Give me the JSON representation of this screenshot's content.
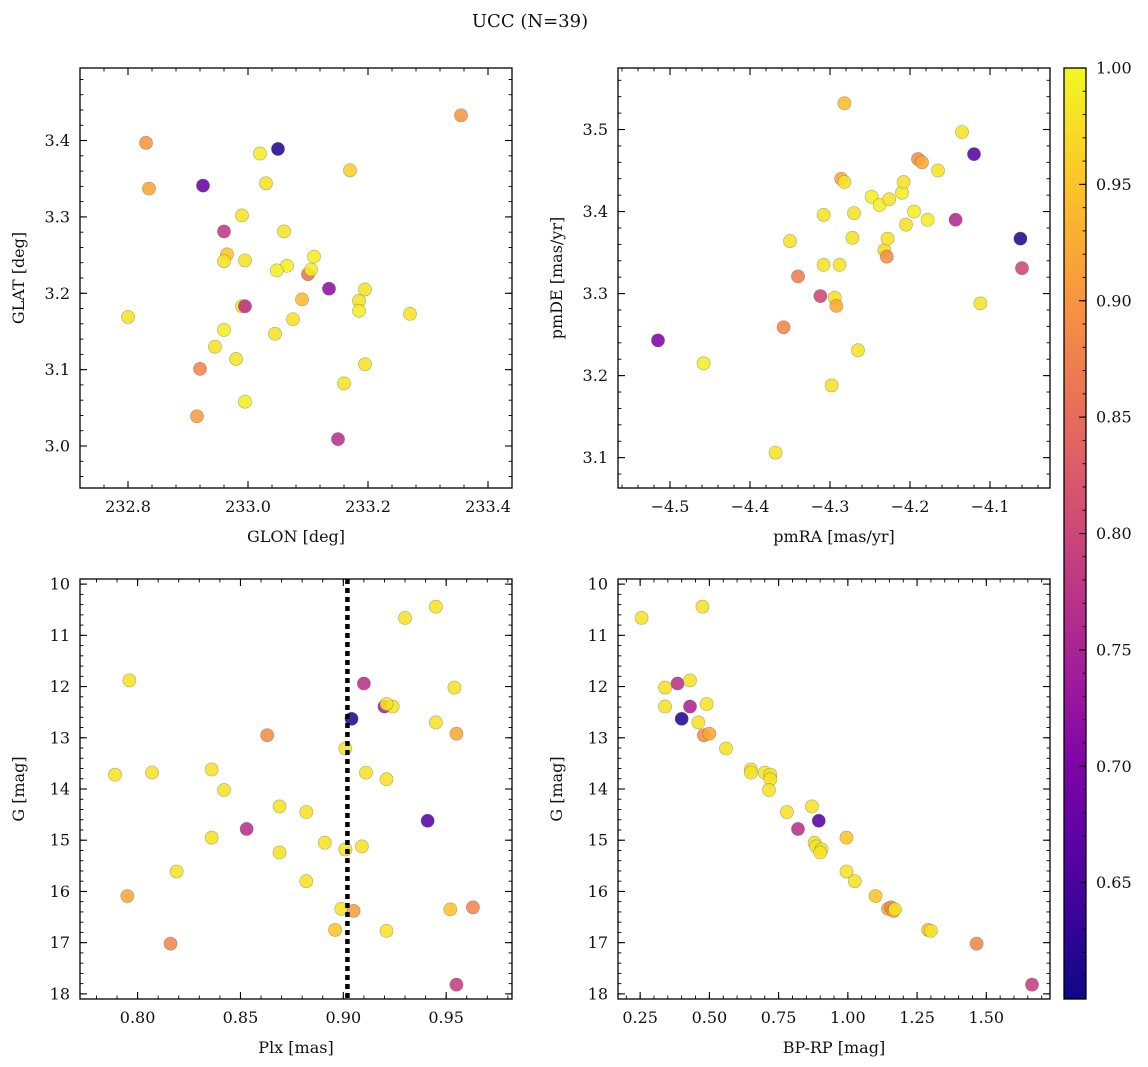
{
  "figure": {
    "title": "UCC (N=39)"
  },
  "colorbar": {
    "colormap": "plasma",
    "range": [
      0.6,
      1.0
    ],
    "ticks": [
      0.65,
      0.7,
      0.75,
      0.8,
      0.85,
      0.9,
      0.95,
      1.0
    ],
    "tick_labels": [
      "0.65",
      "0.70",
      "0.75",
      "0.80",
      "0.85",
      "0.90",
      "0.95",
      "1.00"
    ]
  },
  "chart_data": [
    {
      "type": "scatter",
      "id": "glon-glat",
      "xlabel": "GLON [deg]",
      "ylabel": "GLAT [deg]",
      "xlim": [
        232.72,
        233.44
      ],
      "ylim": [
        2.945,
        3.495
      ],
      "xticks": [
        232.8,
        233.0,
        233.2,
        233.4
      ],
      "xtick_labels": [
        "232.8",
        "233.0",
        "233.2",
        "233.4"
      ],
      "yticks": [
        3.0,
        3.1,
        3.2,
        3.3,
        3.4
      ],
      "ytick_labels": [
        "3.0",
        "3.1",
        "3.2",
        "3.3",
        "3.4"
      ],
      "x": [
        232.83,
        232.835,
        232.925,
        232.96,
        232.965,
        232.96,
        232.99,
        232.99,
        232.995,
        232.995,
        232.96,
        232.945,
        232.98,
        232.92,
        232.915,
        232.995,
        233.02,
        233.03,
        233.05,
        233.06,
        233.065,
        233.048,
        233.045,
        233.075,
        233.09,
        233.1,
        233.105,
        233.11,
        233.135,
        233.15,
        233.16,
        233.17,
        233.185,
        233.185,
        233.195,
        233.195,
        233.27,
        233.355,
        232.8
      ],
      "y": [
        3.397,
        3.337,
        3.341,
        3.281,
        3.251,
        3.242,
        3.302,
        3.183,
        3.183,
        3.243,
        3.152,
        3.13,
        3.114,
        3.101,
        3.039,
        3.058,
        3.383,
        3.344,
        3.389,
        3.281,
        3.236,
        3.23,
        3.147,
        3.166,
        3.192,
        3.225,
        3.231,
        3.248,
        3.206,
        3.009,
        3.082,
        3.361,
        3.19,
        3.177,
        3.205,
        3.107,
        3.173,
        3.433,
        3.169
      ],
      "c": [
        0.9,
        0.92,
        0.68,
        0.78,
        0.95,
        0.98,
        0.98,
        0.98,
        0.77,
        0.98,
        0.99,
        0.98,
        0.98,
        0.88,
        0.91,
        0.99,
        0.99,
        0.98,
        0.62,
        0.98,
        0.99,
        0.99,
        0.98,
        0.98,
        0.94,
        0.86,
        0.99,
        0.99,
        0.72,
        0.77,
        0.98,
        0.96,
        0.98,
        0.99,
        0.98,
        0.98,
        0.98,
        0.9,
        0.98
      ]
    },
    {
      "type": "scatter",
      "id": "pmra-pmde",
      "xlabel": "pmRA [mas/yr]",
      "ylabel": "pmDE [mas/yr]",
      "xlim": [
        -4.565,
        -4.025
      ],
      "ylim": [
        3.063,
        3.575
      ],
      "xticks": [
        -4.5,
        -4.4,
        -4.3,
        -4.2,
        -4.1
      ],
      "xtick_labels": [
        "−4.5",
        "−4.4",
        "−4.3",
        "−4.2",
        "−4.1"
      ],
      "yticks": [
        3.1,
        3.2,
        3.3,
        3.4,
        3.5
      ],
      "ytick_labels": [
        "3.1",
        "3.2",
        "3.3",
        "3.4",
        "3.5"
      ],
      "x": [
        -4.515,
        -4.458,
        -4.368,
        -4.358,
        -4.35,
        -4.34,
        -4.312,
        -4.308,
        -4.308,
        -4.298,
        -4.294,
        -4.292,
        -4.288,
        -4.286,
        -4.282,
        -4.272,
        -4.27,
        -4.265,
        -4.248,
        -4.238,
        -4.232,
        -4.229,
        -4.228,
        -4.226,
        -4.21,
        -4.208,
        -4.205,
        -4.195,
        -4.19,
        -4.185,
        -4.178,
        -4.165,
        -4.143,
        -4.135,
        -4.12,
        -4.112,
        -4.062,
        -4.06,
        -4.282
      ],
      "y": [
        3.243,
        3.215,
        3.106,
        3.259,
        3.364,
        3.321,
        3.297,
        3.335,
        3.396,
        3.188,
        3.295,
        3.285,
        3.335,
        3.44,
        3.532,
        3.368,
        3.398,
        3.231,
        3.418,
        3.408,
        3.353,
        3.345,
        3.367,
        3.415,
        3.423,
        3.436,
        3.384,
        3.4,
        3.464,
        3.46,
        3.39,
        3.45,
        3.39,
        3.497,
        3.47,
        3.288,
        3.367,
        3.331,
        3.436
      ],
      "c": [
        0.7,
        0.99,
        0.98,
        0.88,
        0.98,
        0.87,
        0.8,
        0.98,
        0.98,
        0.98,
        0.98,
        0.92,
        0.98,
        0.92,
        0.94,
        0.98,
        0.98,
        0.98,
        0.99,
        0.99,
        0.97,
        0.89,
        0.98,
        0.98,
        0.99,
        0.98,
        0.98,
        0.99,
        0.89,
        0.92,
        0.99,
        0.98,
        0.76,
        0.98,
        0.66,
        0.98,
        0.62,
        0.8,
        0.98
      ]
    },
    {
      "type": "scatter",
      "id": "plx-g",
      "xlabel": "Plx [mas]",
      "ylabel": "G [mag]",
      "xlim": [
        0.772,
        0.982
      ],
      "ylim": [
        18.1,
        9.9
      ],
      "y_inverted": true,
      "vline": {
        "x": 0.902,
        "style": "dotted"
      },
      "xticks": [
        0.8,
        0.85,
        0.9,
        0.95
      ],
      "xtick_labels": [
        "0.80",
        "0.85",
        "0.90",
        "0.95"
      ],
      "yticks": [
        10,
        11,
        12,
        13,
        14,
        15,
        16,
        17,
        18
      ],
      "ytick_labels": [
        "10",
        "11",
        "12",
        "13",
        "14",
        "15",
        "16",
        "17",
        "18"
      ],
      "x": [
        0.945,
        0.93,
        0.796,
        0.91,
        0.92,
        0.924,
        0.954,
        0.904,
        0.945,
        0.863,
        0.955,
        0.901,
        0.789,
        0.807,
        0.836,
        0.911,
        0.921,
        0.842,
        0.869,
        0.882,
        0.941,
        0.853,
        0.836,
        0.891,
        0.909,
        0.901,
        0.869,
        0.819,
        0.882,
        0.795,
        0.899,
        0.905,
        0.952,
        0.963,
        0.896,
        0.921,
        0.816,
        0.955,
        0.921
      ],
      "y": [
        10.44,
        10.66,
        11.88,
        11.94,
        12.39,
        12.39,
        12.02,
        12.63,
        12.7,
        12.95,
        12.92,
        13.21,
        13.72,
        13.68,
        13.62,
        13.68,
        13.81,
        14.02,
        14.34,
        14.45,
        14.62,
        14.78,
        14.95,
        15.05,
        15.12,
        15.18,
        15.24,
        15.61,
        15.8,
        16.09,
        16.34,
        16.38,
        16.35,
        16.31,
        16.75,
        16.77,
        17.02,
        17.82,
        12.34
      ],
      "c": [
        0.98,
        0.98,
        0.98,
        0.77,
        0.75,
        0.98,
        0.98,
        0.62,
        0.98,
        0.89,
        0.92,
        0.98,
        0.98,
        0.98,
        0.98,
        0.98,
        0.98,
        0.98,
        0.98,
        0.98,
        0.66,
        0.77,
        0.98,
        0.98,
        0.98,
        0.98,
        0.98,
        0.98,
        0.98,
        0.92,
        0.98,
        0.91,
        0.95,
        0.88,
        0.95,
        0.98,
        0.88,
        0.79,
        0.98
      ]
    },
    {
      "type": "scatter",
      "id": "bprp-g",
      "xlabel": "BP-RP [mag]",
      "ylabel": "G [mag]",
      "xlim": [
        0.17,
        1.73
      ],
      "ylim": [
        18.1,
        9.9
      ],
      "y_inverted": true,
      "xticks": [
        0.25,
        0.5,
        0.75,
        1.0,
        1.25,
        1.5
      ],
      "xtick_labels": [
        "0.25",
        "0.50",
        "0.75",
        "1.00",
        "1.25",
        "1.50"
      ],
      "yticks": [
        10,
        11,
        12,
        13,
        14,
        15,
        16,
        17,
        18
      ],
      "ytick_labels": [
        "10",
        "11",
        "12",
        "13",
        "14",
        "15",
        "16",
        "17",
        "18"
      ],
      "x": [
        0.475,
        0.255,
        0.385,
        0.34,
        0.43,
        0.34,
        0.43,
        0.49,
        0.4,
        0.46,
        0.48,
        0.5,
        0.56,
        0.65,
        0.65,
        0.7,
        0.72,
        0.72,
        0.78,
        0.87,
        0.82,
        0.895,
        0.88,
        0.995,
        0.885,
        0.905,
        0.995,
        1.025,
        1.1,
        1.145,
        1.155,
        1.165,
        1.17,
        1.29,
        1.3,
        1.465,
        1.665,
        0.715,
        0.9
      ],
      "y": [
        10.44,
        10.66,
        11.94,
        12.02,
        11.88,
        12.39,
        12.39,
        12.34,
        12.63,
        12.7,
        12.95,
        12.92,
        13.21,
        13.62,
        13.68,
        13.68,
        13.72,
        13.81,
        14.45,
        14.34,
        14.78,
        14.62,
        15.05,
        14.95,
        15.12,
        15.18,
        15.61,
        15.8,
        16.09,
        16.34,
        16.31,
        16.38,
        16.35,
        16.75,
        16.77,
        17.02,
        17.82,
        14.02,
        15.24
      ],
      "c": [
        0.98,
        0.98,
        0.77,
        0.98,
        0.98,
        0.98,
        0.75,
        0.98,
        0.62,
        0.98,
        0.89,
        0.92,
        0.98,
        0.98,
        0.98,
        0.98,
        0.98,
        0.98,
        0.98,
        0.98,
        0.77,
        0.66,
        0.98,
        0.95,
        0.98,
        0.98,
        0.98,
        0.98,
        0.95,
        0.92,
        0.88,
        0.91,
        0.98,
        0.95,
        0.98,
        0.88,
        0.79,
        0.98,
        0.98
      ]
    }
  ]
}
